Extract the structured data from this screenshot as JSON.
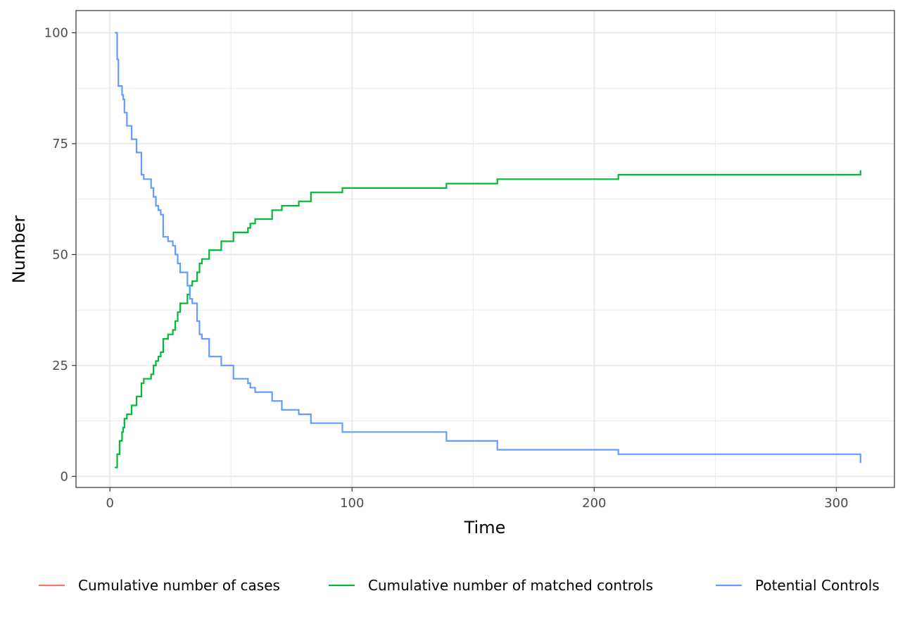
{
  "chart_data": {
    "type": "line",
    "title": "",
    "xlabel": "Time",
    "ylabel": "Number",
    "xlim": [
      -14,
      324
    ],
    "ylim": [
      -2.5,
      105
    ],
    "x_ticks": [
      0,
      100,
      200,
      300
    ],
    "y_ticks": [
      0,
      25,
      50,
      75,
      100
    ],
    "x_tick_labels": [
      "0",
      "100",
      "200",
      "300"
    ],
    "y_tick_labels": [
      "0",
      "25",
      "50",
      "75",
      "100"
    ],
    "grid": true,
    "legend_position": "bottom",
    "series": [
      {
        "name": "Cumulative number of cases",
        "color": "#f8766d",
        "step": true,
        "points": []
      },
      {
        "name": "Cumulative number of matched controls",
        "color": "#00ba38",
        "step": true,
        "points": [
          [
            2,
            2
          ],
          [
            3,
            5
          ],
          [
            4,
            8
          ],
          [
            5,
            10
          ],
          [
            5.5,
            11
          ],
          [
            6,
            13
          ],
          [
            7,
            14
          ],
          [
            9,
            16
          ],
          [
            11,
            18
          ],
          [
            13,
            21
          ],
          [
            14,
            22
          ],
          [
            17,
            23
          ],
          [
            18,
            25
          ],
          [
            19,
            26
          ],
          [
            20,
            27
          ],
          [
            21,
            28
          ],
          [
            22,
            31
          ],
          [
            24,
            32
          ],
          [
            26,
            33
          ],
          [
            27,
            35
          ],
          [
            28,
            37
          ],
          [
            29,
            39
          ],
          [
            32,
            41
          ],
          [
            33,
            43
          ],
          [
            34,
            44
          ],
          [
            36,
            46
          ],
          [
            37,
            48
          ],
          [
            38,
            49
          ],
          [
            41,
            51
          ],
          [
            46,
            53
          ],
          [
            51,
            55
          ],
          [
            57,
            56
          ],
          [
            58,
            57
          ],
          [
            60,
            58
          ],
          [
            67,
            60
          ],
          [
            71,
            61
          ],
          [
            78,
            62
          ],
          [
            83,
            64
          ],
          [
            96,
            65
          ],
          [
            139,
            66
          ],
          [
            160,
            67
          ],
          [
            210,
            68
          ],
          [
            310,
            69
          ]
        ]
      },
      {
        "name": "Potential Controls",
        "color": "#619cff",
        "step": true,
        "points": [
          [
            2,
            100
          ],
          [
            3,
            94
          ],
          [
            3.5,
            88
          ],
          [
            5,
            86
          ],
          [
            5.5,
            85
          ],
          [
            6,
            82
          ],
          [
            7,
            79
          ],
          [
            9,
            76
          ],
          [
            11,
            73
          ],
          [
            13,
            68
          ],
          [
            14,
            67
          ],
          [
            17,
            65
          ],
          [
            18,
            63
          ],
          [
            19,
            61
          ],
          [
            20,
            60
          ],
          [
            21,
            59
          ],
          [
            22,
            54
          ],
          [
            24,
            53
          ],
          [
            26,
            52
          ],
          [
            27,
            50
          ],
          [
            28,
            48
          ],
          [
            29,
            46
          ],
          [
            32,
            43
          ],
          [
            33,
            40
          ],
          [
            34,
            39
          ],
          [
            36,
            35
          ],
          [
            37,
            32
          ],
          [
            38,
            31
          ],
          [
            41,
            27
          ],
          [
            46,
            25
          ],
          [
            51,
            22
          ],
          [
            57,
            21
          ],
          [
            58,
            20
          ],
          [
            60,
            19
          ],
          [
            67,
            17
          ],
          [
            71,
            15
          ],
          [
            78,
            14
          ],
          [
            83,
            12
          ],
          [
            96,
            10
          ],
          [
            139,
            8
          ],
          [
            160,
            6
          ],
          [
            210,
            5
          ],
          [
            310,
            3
          ]
        ]
      }
    ]
  }
}
